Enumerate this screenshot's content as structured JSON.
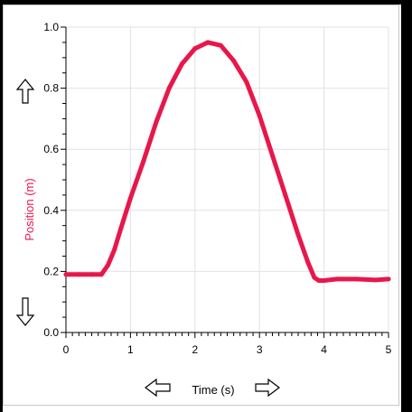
{
  "chart_data": {
    "type": "line",
    "xlabel": "Time (s)",
    "ylabel": "Position (m)",
    "xlim": [
      0,
      5
    ],
    "ylim": [
      0,
      1.0
    ],
    "x_ticks": [
      "0",
      "1",
      "2",
      "3",
      "4",
      "5"
    ],
    "y_ticks": [
      "0.0",
      "0.2",
      "0.4",
      "0.6",
      "0.8",
      "1.0"
    ],
    "grid": true,
    "series": [
      {
        "color": "#e8174a",
        "x": [
          0.0,
          0.2,
          0.4,
          0.55,
          0.65,
          0.75,
          0.85,
          1.0,
          1.2,
          1.4,
          1.6,
          1.8,
          2.0,
          2.2,
          2.4,
          2.6,
          2.8,
          3.0,
          3.2,
          3.4,
          3.6,
          3.75,
          3.85,
          3.92,
          4.0,
          4.2,
          4.5,
          4.8,
          5.0
        ],
        "y": [
          0.19,
          0.19,
          0.19,
          0.19,
          0.22,
          0.27,
          0.34,
          0.44,
          0.56,
          0.69,
          0.8,
          0.88,
          0.93,
          0.95,
          0.94,
          0.89,
          0.82,
          0.71,
          0.58,
          0.45,
          0.32,
          0.23,
          0.18,
          0.17,
          0.17,
          0.175,
          0.175,
          0.172,
          0.175
        ]
      }
    ]
  },
  "controls": {
    "y_up_arrow": "up-arrow-icon",
    "y_down_arrow": "down-arrow-icon",
    "x_left_arrow": "left-arrow-icon",
    "x_right_arrow": "right-arrow-icon"
  }
}
